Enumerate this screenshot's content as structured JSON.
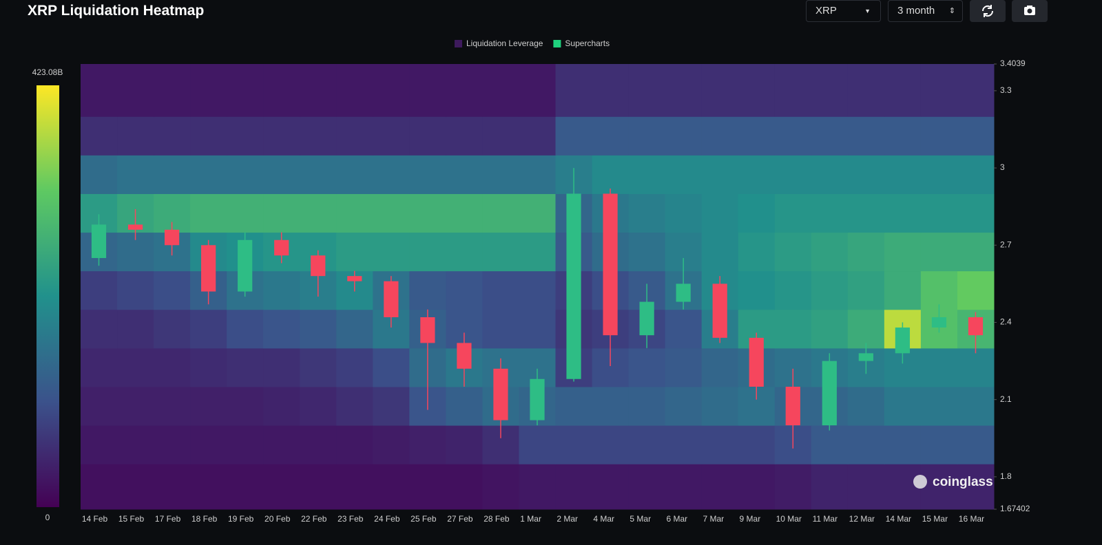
{
  "header": {
    "title": "XRP Liquidation Heatmap",
    "symbol": "XRP",
    "range": "3 month"
  },
  "watermark": "coinglass",
  "chart_data": {
    "type": "heatmap",
    "categories": [
      "14 Feb",
      "15 Feb",
      "17 Feb",
      "18 Feb",
      "19 Feb",
      "20 Feb",
      "22 Feb",
      "23 Feb",
      "24 Feb",
      "25 Feb",
      "27 Feb",
      "28 Feb",
      "1 Mar",
      "2 Mar",
      "4 Mar",
      "5 Mar",
      "6 Mar",
      "7 Mar",
      "9 Mar",
      "10 Mar",
      "11 Mar",
      "12 Mar",
      "14 Mar",
      "15 Mar",
      "16 Mar"
    ],
    "ylim": [
      1.67402,
      3.4039
    ],
    "yticks": [
      1.67402,
      1.8,
      2.1,
      2.4,
      2.7,
      3,
      3.3,
      3.4039
    ],
    "legend": [
      {
        "name": "Liquidation Leverage",
        "color": "#3d1a5c"
      },
      {
        "name": "Supercharts",
        "color": "#1fd07d"
      }
    ],
    "colorbar": {
      "lim": [
        0,
        423.08
      ],
      "ticks": [
        0,
        {
          "value": 423.08,
          "label": "423.08B"
        }
      ],
      "colors": [
        "#440154",
        "#3b528b",
        "#21918c",
        "#5ec962",
        "#fde725"
      ]
    },
    "ybins": [
      1.67402,
      1.85,
      2.0,
      2.15,
      2.3,
      2.45,
      2.6,
      2.75,
      2.9,
      3.05,
      3.2,
      3.4039
    ],
    "values": [
      [
        20,
        20,
        20,
        20,
        20,
        20,
        20,
        20,
        20,
        20,
        20,
        25,
        30,
        30,
        30,
        30,
        30,
        30,
        30,
        35,
        45,
        45,
        45,
        45,
        45
      ],
      [
        30,
        30,
        30,
        30,
        30,
        30,
        30,
        30,
        35,
        40,
        45,
        60,
        90,
        90,
        90,
        90,
        90,
        90,
        90,
        100,
        120,
        120,
        120,
        120,
        120
      ],
      [
        40,
        40,
        40,
        40,
        40,
        45,
        50,
        60,
        70,
        110,
        130,
        150,
        140,
        130,
        130,
        130,
        140,
        150,
        160,
        140,
        140,
        150,
        170,
        170,
        170
      ],
      [
        50,
        50,
        50,
        55,
        60,
        60,
        70,
        80,
        100,
        150,
        170,
        160,
        160,
        80,
        100,
        110,
        120,
        140,
        150,
        160,
        170,
        180,
        190,
        190,
        190
      ],
      [
        60,
        60,
        70,
        80,
        100,
        110,
        120,
        140,
        170,
        130,
        110,
        100,
        100,
        70,
        80,
        90,
        110,
        180,
        230,
        230,
        240,
        260,
        380,
        300,
        280
      ],
      [
        80,
        90,
        100,
        130,
        160,
        170,
        180,
        200,
        160,
        120,
        110,
        100,
        100,
        80,
        100,
        120,
        160,
        200,
        210,
        220,
        230,
        240,
        260,
        300,
        320
      ],
      [
        140,
        150,
        160,
        200,
        210,
        220,
        220,
        230,
        230,
        230,
        230,
        230,
        230,
        120,
        150,
        160,
        180,
        200,
        220,
        230,
        240,
        250,
        260,
        260,
        260
      ],
      [
        230,
        250,
        260,
        270,
        270,
        270,
        270,
        270,
        270,
        270,
        270,
        270,
        270,
        140,
        170,
        180,
        190,
        200,
        210,
        220,
        220,
        220,
        220,
        220,
        220
      ],
      [
        150,
        160,
        160,
        160,
        160,
        160,
        160,
        160,
        160,
        160,
        160,
        160,
        160,
        180,
        200,
        200,
        200,
        200,
        200,
        200,
        200,
        200,
        200,
        200,
        200
      ],
      [
        60,
        60,
        60,
        60,
        60,
        60,
        60,
        60,
        60,
        60,
        60,
        60,
        60,
        120,
        120,
        120,
        120,
        120,
        120,
        120,
        120,
        120,
        120,
        120,
        120
      ],
      [
        30,
        30,
        30,
        30,
        30,
        30,
        30,
        30,
        30,
        30,
        30,
        30,
        30,
        60,
        60,
        60,
        60,
        60,
        60,
        60,
        60,
        60,
        60,
        60,
        60
      ]
    ],
    "candles": {
      "up_color": "#2ebd85",
      "down_color": "#f6465d",
      "open": [
        2.65,
        2.78,
        2.76,
        2.7,
        2.52,
        2.72,
        2.66,
        2.58,
        2.56,
        2.42,
        2.32,
        2.22,
        2.02,
        2.18,
        2.9,
        2.35,
        2.48,
        2.55,
        2.34,
        2.15,
        2.0,
        2.25,
        2.28,
        2.38,
        2.42
      ],
      "high": [
        2.82,
        2.84,
        2.79,
        2.72,
        2.75,
        2.75,
        2.68,
        2.6,
        2.58,
        2.45,
        2.36,
        2.26,
        2.22,
        3.0,
        2.92,
        2.55,
        2.65,
        2.58,
        2.36,
        2.22,
        2.28,
        2.32,
        2.4,
        2.47,
        2.44
      ],
      "low": [
        2.62,
        2.72,
        2.66,
        2.47,
        2.5,
        2.63,
        2.5,
        2.52,
        2.38,
        2.06,
        2.15,
        1.95,
        2.0,
        2.17,
        2.23,
        2.3,
        2.45,
        2.32,
        2.1,
        1.91,
        1.98,
        2.2,
        2.24,
        2.36,
        2.28
      ],
      "close": [
        2.78,
        2.76,
        2.7,
        2.52,
        2.72,
        2.66,
        2.58,
        2.56,
        2.42,
        2.32,
        2.22,
        2.02,
        2.18,
        2.9,
        2.35,
        2.48,
        2.55,
        2.34,
        2.15,
        2.0,
        2.25,
        2.28,
        2.38,
        2.42,
        2.35
      ]
    }
  }
}
